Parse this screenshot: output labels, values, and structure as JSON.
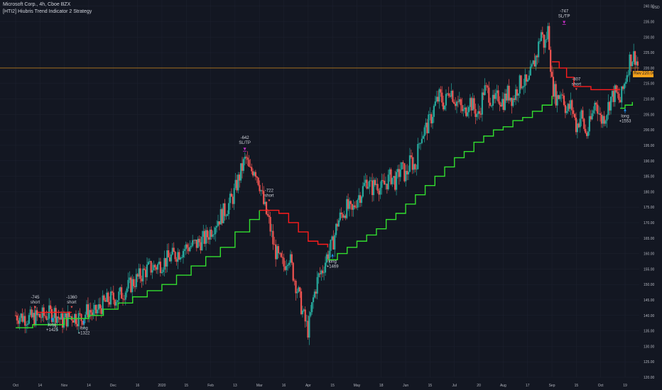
{
  "header": {
    "symbol_line": "Microsoft Corp., 4h, Cboe BZX",
    "strategy_line": "[HTI2] Hiubris Trend Indicator 2 Strategy"
  },
  "price_axis": {
    "unit": "USD",
    "ticks": [
      "240.00",
      "235.00",
      "230.00",
      "225.00",
      "220.00",
      "215.00",
      "210.00",
      "205.00",
      "200.00",
      "195.00",
      "190.00",
      "185.00",
      "180.00",
      "175.00",
      "170.00",
      "165.00",
      "160.00",
      "155.00",
      "150.00",
      "145.00",
      "140.00",
      "135.00",
      "130.00",
      "125.00",
      "120.00"
    ]
  },
  "last_price": {
    "value": "220.00",
    "tag": "Rev"
  },
  "colors": {
    "background": "#131722",
    "up": "#26a69a",
    "down": "#ef5350",
    "trend_long": "#33e02f",
    "trend_short": "#ff1d1d",
    "marker": "#c52fc7",
    "arrow": "#2196f3",
    "last_price": "#f7a21b"
  },
  "chart_data": {
    "type": "candlestick",
    "x_ticks": [
      "Oct",
      "14",
      "Nov",
      "14",
      "Dec",
      "16",
      "2020",
      "15",
      "Feb",
      "13",
      "Mar",
      "16",
      "Apr",
      "15",
      "May",
      "18",
      "Jun",
      "15",
      "Jul",
      "20",
      "Aug",
      "17",
      "Sep",
      "15",
      "Oct",
      "19"
    ],
    "y_range": [
      120,
      242
    ],
    "close_path": [
      [
        0,
        140
      ],
      [
        0.6,
        139
      ],
      [
        1.2,
        140
      ],
      [
        1.6,
        141
      ],
      [
        1.9,
        138
      ],
      [
        2.3,
        140
      ],
      [
        2.7,
        139
      ],
      [
        3.0,
        142
      ],
      [
        3.2,
        140
      ],
      [
        3.5,
        143
      ],
      [
        3.8,
        145
      ],
      [
        4.2,
        146
      ],
      [
        4.6,
        149
      ],
      [
        5.0,
        152
      ],
      [
        5.4,
        155
      ],
      [
        5.8,
        156
      ],
      [
        6.2,
        158
      ],
      [
        6.6,
        160
      ],
      [
        7.0,
        162
      ],
      [
        7.4,
        163
      ],
      [
        7.8,
        165
      ],
      [
        8.2,
        170
      ],
      [
        8.6,
        174
      ],
      [
        8.9,
        178
      ],
      [
        9.1,
        183
      ],
      [
        9.3,
        188
      ],
      [
        9.45,
        191
      ],
      [
        9.6,
        186
      ],
      [
        9.8,
        188
      ],
      [
        10.0,
        183
      ],
      [
        10.2,
        175
      ],
      [
        10.4,
        170
      ],
      [
        10.6,
        162
      ],
      [
        10.8,
        158
      ],
      [
        11.0,
        156
      ],
      [
        11.2,
        160
      ],
      [
        11.4,
        153
      ],
      [
        11.6,
        147
      ],
      [
        11.8,
        140
      ],
      [
        12.0,
        135
      ],
      [
        12.2,
        145
      ],
      [
        12.4,
        152
      ],
      [
        12.6,
        155
      ],
      [
        12.8,
        160
      ],
      [
        13.0,
        163
      ],
      [
        13.2,
        170
      ],
      [
        13.4,
        173
      ],
      [
        13.6,
        175
      ],
      [
        13.8,
        173
      ],
      [
        14.0,
        178
      ],
      [
        14.2,
        180
      ],
      [
        14.4,
        184
      ],
      [
        14.6,
        181
      ],
      [
        14.8,
        183
      ],
      [
        15.0,
        181
      ],
      [
        15.2,
        183
      ],
      [
        15.4,
        185
      ],
      [
        15.6,
        183
      ],
      [
        15.8,
        188
      ],
      [
        16.0,
        185
      ],
      [
        16.2,
        190
      ],
      [
        16.4,
        188
      ],
      [
        16.6,
        198
      ],
      [
        16.8,
        200
      ],
      [
        17.0,
        203
      ],
      [
        17.2,
        208
      ],
      [
        17.4,
        211
      ],
      [
        17.6,
        208
      ],
      [
        17.8,
        214
      ],
      [
        18.0,
        210
      ],
      [
        18.2,
        208
      ],
      [
        18.4,
        205
      ],
      [
        18.6,
        210
      ],
      [
        18.8,
        207
      ],
      [
        19.0,
        204
      ],
      [
        19.2,
        213
      ],
      [
        19.4,
        212
      ],
      [
        19.6,
        208
      ],
      [
        19.8,
        211
      ],
      [
        20.0,
        209
      ],
      [
        20.2,
        212
      ],
      [
        20.4,
        210
      ],
      [
        20.6,
        214
      ],
      [
        20.8,
        216
      ],
      [
        21.0,
        214
      ],
      [
        21.2,
        220
      ],
      [
        21.4,
        225
      ],
      [
        21.55,
        232
      ],
      [
        21.7,
        227
      ],
      [
        21.85,
        233
      ],
      [
        22.0,
        215
      ],
      [
        22.2,
        210
      ],
      [
        22.4,
        213
      ],
      [
        22.6,
        206
      ],
      [
        22.8,
        208
      ],
      [
        23.0,
        201
      ],
      [
        23.2,
        205
      ],
      [
        23.4,
        198
      ],
      [
        23.6,
        203
      ],
      [
        23.8,
        210
      ],
      [
        24.0,
        203
      ],
      [
        24.2,
        205
      ],
      [
        24.4,
        210
      ],
      [
        24.6,
        212
      ],
      [
        24.8,
        209
      ],
      [
        25.0,
        216
      ],
      [
        25.2,
        223
      ],
      [
        25.4,
        224
      ],
      [
        25.55,
        220
      ]
    ],
    "trend_long_segments": [
      [
        [
          0,
          136
        ],
        [
          0.7,
          137
        ],
        [
          1.4,
          137
        ],
        [
          2.0,
          139
        ],
        [
          2.6,
          139
        ],
        [
          3.0,
          140
        ],
        [
          3.6,
          142
        ],
        [
          4.2,
          144
        ],
        [
          4.8,
          146
        ],
        [
          5.4,
          148
        ],
        [
          6.0,
          150
        ],
        [
          6.6,
          153
        ],
        [
          7.2,
          156
        ],
        [
          7.8,
          159
        ],
        [
          8.4,
          162
        ],
        [
          9.0,
          167
        ],
        [
          9.6,
          171
        ],
        [
          10.0,
          174
        ]
      ],
      [
        [
          12.8,
          158
        ],
        [
          13.2,
          160
        ],
        [
          13.6,
          162
        ],
        [
          14.0,
          164
        ],
        [
          14.4,
          166
        ],
        [
          14.8,
          168
        ],
        [
          15.2,
          171
        ],
        [
          15.6,
          173
        ],
        [
          16.0,
          176
        ],
        [
          16.4,
          179
        ],
        [
          16.8,
          182
        ],
        [
          17.2,
          185
        ],
        [
          17.6,
          188
        ],
        [
          18.0,
          191
        ],
        [
          18.4,
          193
        ],
        [
          18.8,
          196
        ],
        [
          19.2,
          198
        ],
        [
          19.6,
          200
        ],
        [
          20.0,
          201
        ],
        [
          20.4,
          203
        ],
        [
          20.8,
          204
        ],
        [
          21.2,
          206
        ],
        [
          21.6,
          208
        ],
        [
          22.0,
          211
        ]
      ],
      [
        [
          24.8,
          207
        ],
        [
          25.0,
          208
        ],
        [
          25.3,
          209
        ]
      ]
    ],
    "trend_short_segments": [
      [
        [
          0.9,
          141
        ],
        [
          1.4,
          141
        ],
        [
          2.3,
          141
        ]
      ],
      [
        [
          10.0,
          174
        ],
        [
          10.4,
          174
        ],
        [
          10.8,
          173
        ],
        [
          11.2,
          170
        ],
        [
          11.6,
          167
        ],
        [
          12.0,
          164
        ],
        [
          12.4,
          163
        ],
        [
          12.8,
          162
        ]
      ],
      [
        [
          22.0,
          222
        ],
        [
          22.3,
          220
        ],
        [
          22.6,
          217
        ],
        [
          22.9,
          214
        ],
        [
          23.6,
          213
        ],
        [
          24.4,
          213
        ],
        [
          24.8,
          213
        ]
      ]
    ],
    "annotations": [
      {
        "id": "a1",
        "text": [
          "-745",
          "short"
        ],
        "x": 0.8,
        "y": 145.5,
        "kind": "down-arrow"
      },
      {
        "id": "a2",
        "text": [
          "long",
          "+1425"
        ],
        "x": 1.5,
        "y": 139.5,
        "kind": "up-arrow"
      },
      {
        "id": "a3",
        "text": [
          "-1360",
          "short"
        ],
        "x": 2.3,
        "y": 145.5,
        "kind": "down-arrow"
      },
      {
        "id": "a4",
        "text": [
          "long",
          "+1322"
        ],
        "x": 2.8,
        "y": 138.5,
        "kind": "up-arrow"
      },
      {
        "id": "a5",
        "text": [
          "-642",
          "SL/TP"
        ],
        "x": 9.4,
        "y": 197,
        "kind": "marker"
      },
      {
        "id": "a6",
        "text": [
          "-722",
          "short"
        ],
        "x": 10.4,
        "y": 180,
        "kind": "down-arrow"
      },
      {
        "id": "a7",
        "text": [
          "long",
          "+1469"
        ],
        "x": 13.0,
        "y": 160,
        "kind": "up-arrow"
      },
      {
        "id": "a8",
        "text": [
          "-747",
          "SL/TP"
        ],
        "x": 22.5,
        "y": 238,
        "kind": "marker"
      },
      {
        "id": "a9",
        "text": [
          "-807",
          "short"
        ],
        "x": 23.0,
        "y": 216,
        "kind": "down-arrow"
      },
      {
        "id": "a10",
        "text": [
          "long",
          "+1553"
        ],
        "x": 25.0,
        "y": 207,
        "kind": "up-arrow"
      }
    ]
  }
}
